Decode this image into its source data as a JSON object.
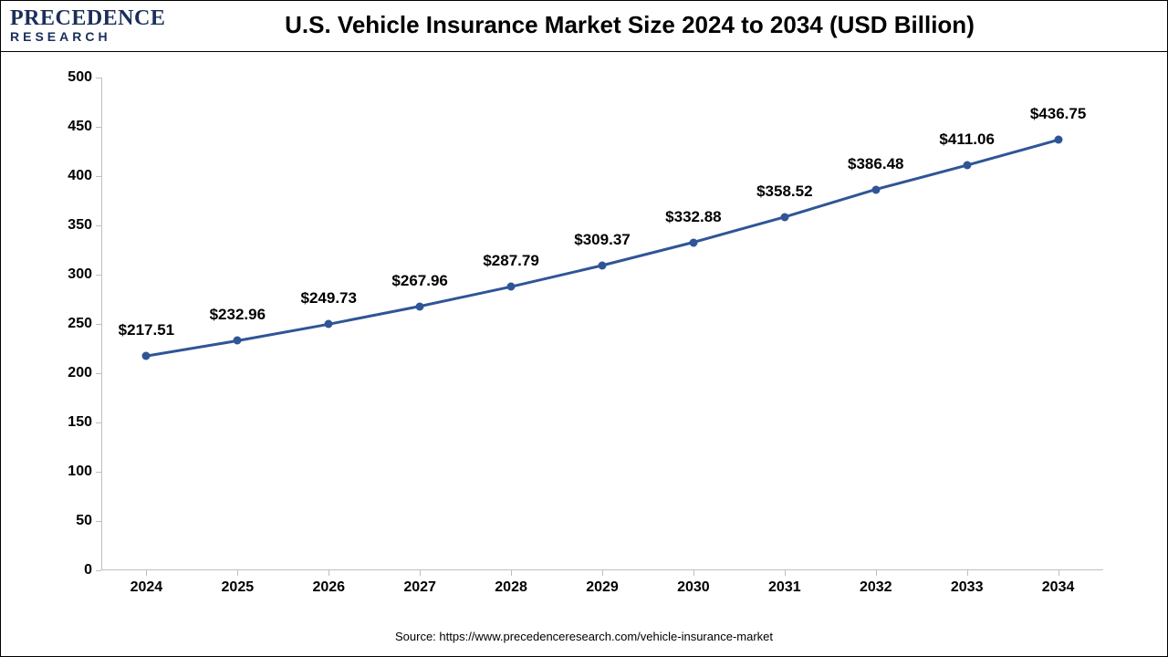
{
  "logo": {
    "main": "PRECEDENCE",
    "sub": "RESEARCH",
    "color": "#1b2e5a"
  },
  "title": "U.S. Vehicle Insurance Market Size 2024 to 2034 (USD Billion)",
  "title_fontsize": 26,
  "source": "Source: https://www.precedenceresearch.com/vehicle-insurance-market",
  "chart": {
    "type": "line",
    "categories": [
      "2024",
      "2025",
      "2026",
      "2027",
      "2028",
      "2029",
      "2030",
      "2031",
      "2032",
      "2033",
      "2034"
    ],
    "values": [
      217.51,
      232.96,
      249.73,
      267.96,
      287.79,
      309.37,
      332.88,
      358.52,
      386.48,
      411.06,
      436.75
    ],
    "labels": [
      "$217.51",
      "$232.96",
      "$249.73",
      "$267.96",
      "$287.79",
      "$309.37",
      "$332.88",
      "$358.52",
      "$386.48",
      "$411.06",
      "$436.75"
    ],
    "line_color": "#2f5597",
    "marker_color": "#2f5597",
    "marker_size": 9,
    "line_width": 3,
    "ylim": [
      0,
      500
    ],
    "ytick_step": 50,
    "axis_color": "#bfbfbf",
    "background_color": "#ffffff",
    "label_fontsize": 17,
    "tick_fontsize": 16,
    "tick_fontweight": "bold"
  }
}
